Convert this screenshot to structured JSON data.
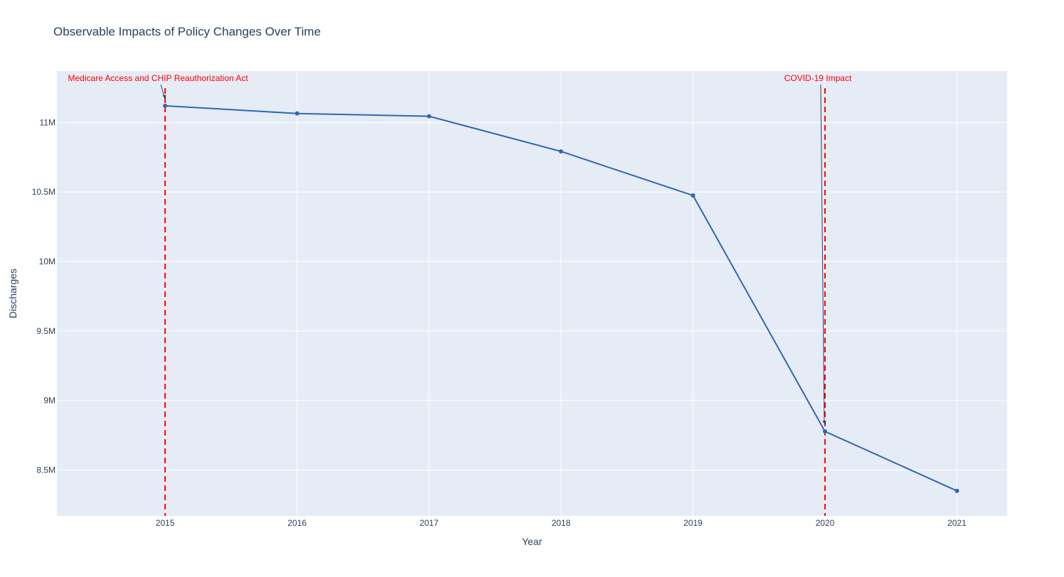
{
  "chart_data": {
    "type": "line",
    "title": "Observable Impacts of Policy Changes Over Time",
    "xlabel": "Year",
    "ylabel": "Discharges",
    "x": [
      2015,
      2016,
      2017,
      2018,
      2019,
      2020,
      2021
    ],
    "x_tick_labels": [
      "2015",
      "2016",
      "2017",
      "2018",
      "2019",
      "2020",
      "2021"
    ],
    "series": [
      {
        "values": [
          11120000,
          11065000,
          11045000,
          10792000,
          10475000,
          8778000,
          8350000
        ]
      }
    ],
    "xlim": [
      2014.18,
      2021.38
    ],
    "ylim": [
      8170000,
      11370000
    ],
    "y_ticks": [
      8500000,
      9000000,
      9500000,
      10000000,
      10500000,
      11000000
    ],
    "y_tick_labels": [
      "8.5M",
      "9M",
      "9.5M",
      "10M",
      "10.5M",
      "11M"
    ],
    "annotations": [
      {
        "x": 2015,
        "label": "Medicare Access and CHIP Reauthorization Act"
      },
      {
        "x": 2020,
        "label": "COVID-19 Impact"
      }
    ],
    "grid": true,
    "colors": {
      "line": "#3366b0",
      "annotation": "#ff0000",
      "plot_bg": "#e5ecf6",
      "grid": "#ffffff",
      "text": "#2a3f5f"
    }
  }
}
